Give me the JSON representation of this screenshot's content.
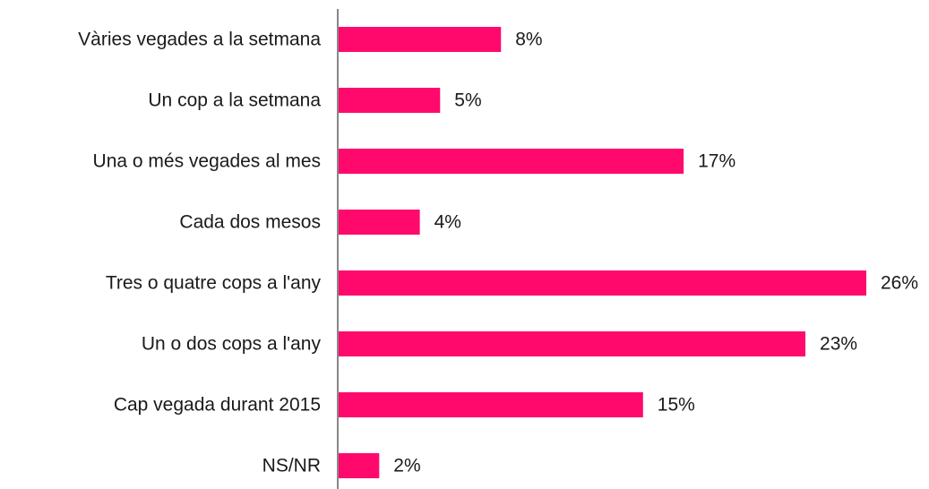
{
  "chart_data": {
    "type": "barh",
    "categories": [
      "Vàries vegades a la setmana",
      "Un cop a la setmana",
      "Una o més vegades al mes",
      "Cada dos mesos",
      "Tres o quatre cops a l'any",
      "Un o dos cops a l'any",
      "Cap vegada durant 2015",
      "NS/NR"
    ],
    "values": [
      8,
      5,
      17,
      4,
      26,
      23,
      15,
      2
    ],
    "value_labels": [
      "8%",
      "5%",
      "17%",
      "4%",
      "26%",
      "23%",
      "15%",
      "2%"
    ],
    "color": "#ff0a6c",
    "xlim": [
      0,
      26
    ]
  }
}
